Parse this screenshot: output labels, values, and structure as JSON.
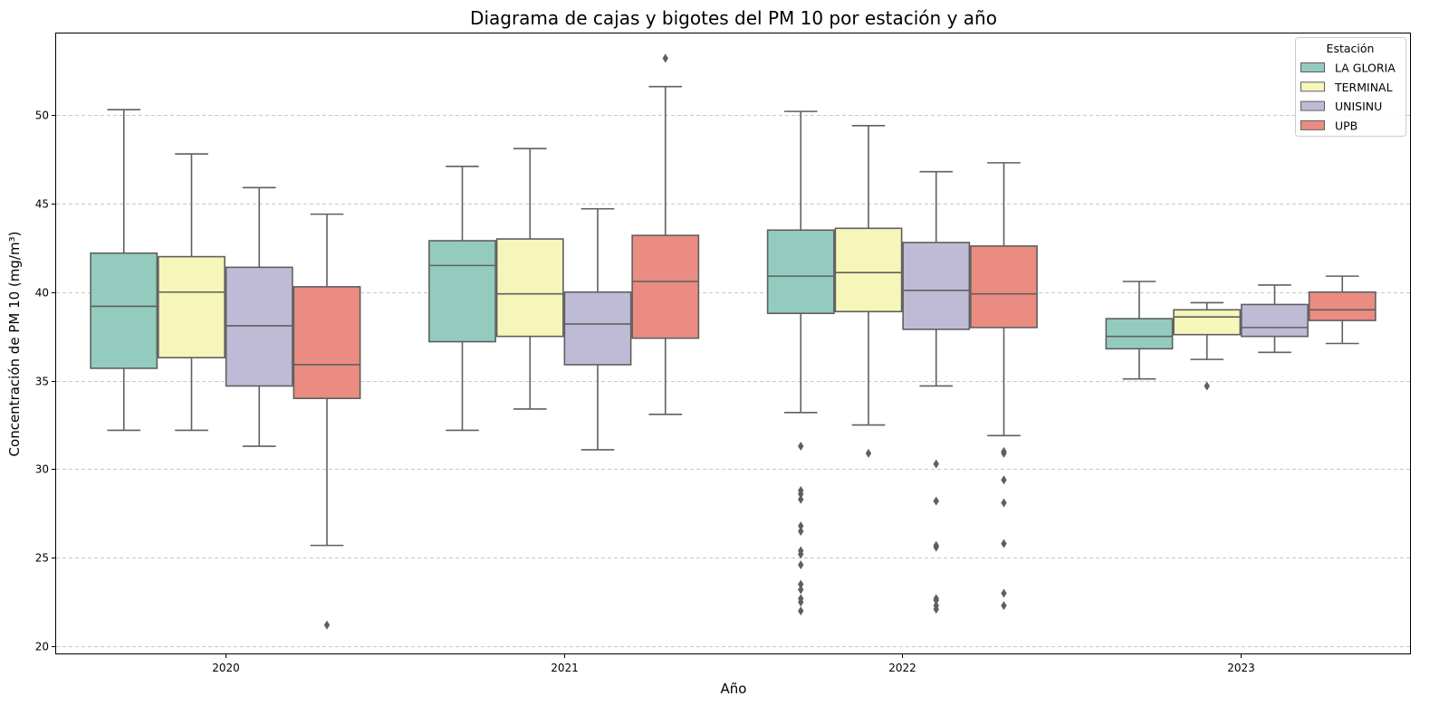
{
  "chart_data": {
    "type": "box",
    "title": "Diagrama de cajas y bigotes del PM 10 por estación y año",
    "xlabel": "Año",
    "ylabel": "Concentración de PM 10 (mg/m³)",
    "categories": [
      "2020",
      "2021",
      "2022",
      "2023"
    ],
    "ylim": [
      19.6,
      54.6
    ],
    "yticks": [
      20,
      25,
      30,
      35,
      40,
      45,
      50
    ],
    "grid": "y-dashed",
    "legend": {
      "title": "Estación",
      "position": "top-right"
    },
    "series": [
      {
        "name": "LA GLORIA",
        "color": "#94cbbf",
        "boxes": [
          {
            "whisker_low": 32.2,
            "q1": 35.7,
            "median": 39.2,
            "q3": 42.2,
            "whisker_high": 50.3,
            "outliers": []
          },
          {
            "whisker_low": 32.2,
            "q1": 37.2,
            "median": 41.5,
            "q3": 42.9,
            "whisker_high": 47.1,
            "outliers": []
          },
          {
            "whisker_low": 33.2,
            "q1": 38.8,
            "median": 40.9,
            "q3": 43.5,
            "whisker_high": 50.2,
            "outliers": [
              31.3,
              28.8,
              28.6,
              28.3,
              26.8,
              26.5,
              25.4,
              25.2,
              24.6,
              23.5,
              23.2,
              22.7,
              22.5,
              22.0
            ]
          },
          {
            "whisker_low": 35.1,
            "q1": 36.8,
            "median": 37.5,
            "q3": 38.5,
            "whisker_high": 40.6,
            "outliers": []
          }
        ]
      },
      {
        "name": "TERMINAL",
        "color": "#f6f6ba",
        "boxes": [
          {
            "whisker_low": 32.2,
            "q1": 36.3,
            "median": 40.0,
            "q3": 42.0,
            "whisker_high": 47.8,
            "outliers": []
          },
          {
            "whisker_low": 33.4,
            "q1": 37.5,
            "median": 39.9,
            "q3": 43.0,
            "whisker_high": 48.1,
            "outliers": []
          },
          {
            "whisker_low": 32.5,
            "q1": 38.9,
            "median": 41.1,
            "q3": 43.6,
            "whisker_high": 49.4,
            "outliers": [
              30.9
            ]
          },
          {
            "whisker_low": 36.2,
            "q1": 37.6,
            "median": 38.6,
            "q3": 39.0,
            "whisker_high": 39.4,
            "outliers": [
              34.7
            ]
          }
        ]
      },
      {
        "name": "UNISINU",
        "color": "#bfbbd6",
        "boxes": [
          {
            "whisker_low": 31.3,
            "q1": 34.7,
            "median": 38.1,
            "q3": 41.4,
            "whisker_high": 45.9,
            "outliers": []
          },
          {
            "whisker_low": 31.1,
            "q1": 35.9,
            "median": 38.2,
            "q3": 40.0,
            "whisker_high": 44.7,
            "outliers": []
          },
          {
            "whisker_low": 34.7,
            "q1": 37.9,
            "median": 40.1,
            "q3": 42.8,
            "whisker_high": 46.8,
            "outliers": [
              30.3,
              28.2,
              25.7,
              25.6,
              22.7,
              22.6,
              22.3,
              22.1
            ]
          },
          {
            "whisker_low": 36.6,
            "q1": 37.5,
            "median": 38.0,
            "q3": 39.3,
            "whisker_high": 40.4,
            "outliers": []
          }
        ]
      },
      {
        "name": "UPB",
        "color": "#ea8c81",
        "boxes": [
          {
            "whisker_low": 25.7,
            "q1": 34.0,
            "median": 35.9,
            "q3": 40.3,
            "whisker_high": 44.4,
            "outliers": [
              21.2
            ]
          },
          {
            "whisker_low": 33.1,
            "q1": 37.4,
            "median": 40.6,
            "q3": 43.2,
            "whisker_high": 51.6,
            "outliers": [
              53.2
            ]
          },
          {
            "whisker_low": 31.9,
            "q1": 38.0,
            "median": 39.9,
            "q3": 42.6,
            "whisker_high": 47.3,
            "outliers": [
              31.0,
              30.9,
              29.4,
              28.1,
              25.8,
              23.0,
              22.3
            ]
          },
          {
            "whisker_low": 37.1,
            "q1": 38.4,
            "median": 39.0,
            "q3": 40.0,
            "whisker_high": 40.9,
            "outliers": []
          }
        ]
      }
    ]
  }
}
